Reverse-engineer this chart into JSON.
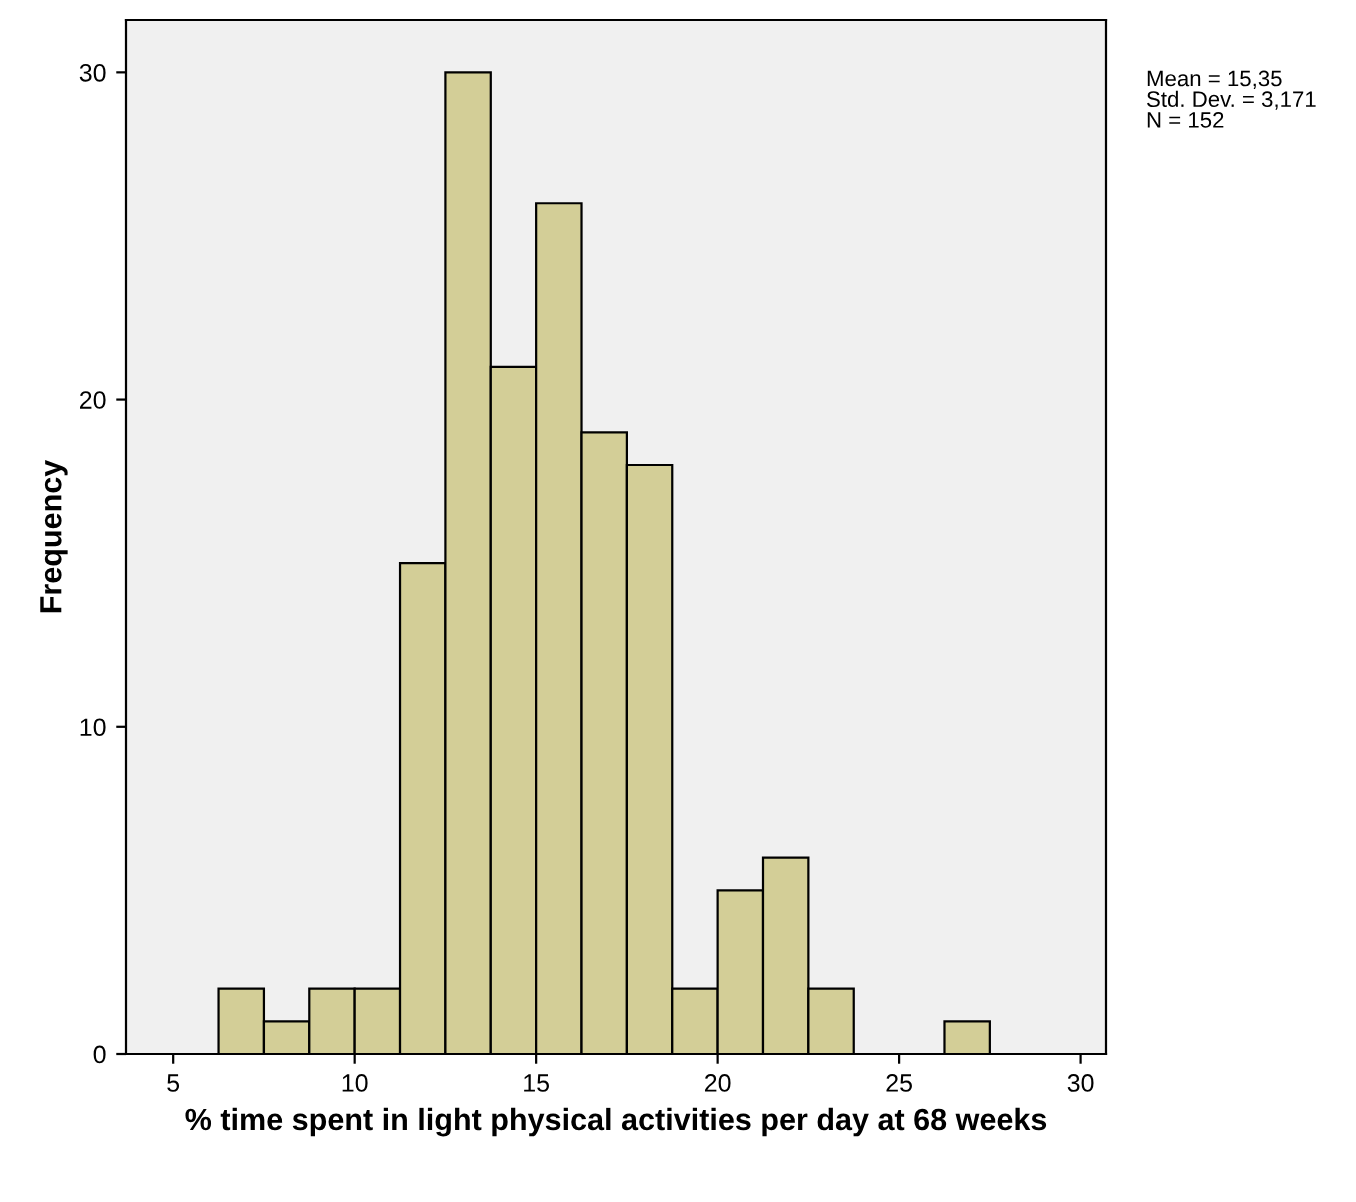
{
  "chart_data": {
    "type": "histogram",
    "xlabel": "% time spent in light physical activities per day at 68 weeks",
    "ylabel": "Frequency",
    "bins": [
      6.25,
      7.5,
      8.75,
      10,
      11.25,
      12.5,
      13.75,
      15,
      16.25,
      17.5,
      18.75,
      20,
      21.25,
      22.5,
      23.75,
      25,
      26.25,
      27.5
    ],
    "values": [
      2,
      1,
      2,
      2,
      15,
      30,
      21,
      26,
      19,
      18,
      2,
      5,
      6,
      2,
      0,
      0,
      1
    ],
    "color": "#d3ce97",
    "xlim": [
      3.7,
      30.7
    ],
    "xticks": [
      5,
      10,
      15,
      20,
      25,
      30
    ],
    "ylim": [
      0,
      31.6
    ],
    "yticks": [
      0,
      10,
      20,
      30
    ],
    "grid": false,
    "legend": false,
    "annotations": [
      "Mean = 15,35\nStd. Dev. = 3,171\nN = 152"
    ]
  }
}
